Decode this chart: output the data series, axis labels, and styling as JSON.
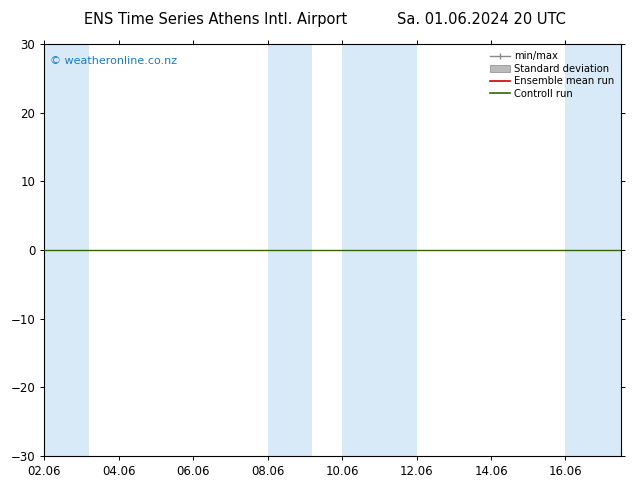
{
  "title_left": "ENS Time Series Athens Intl. Airport",
  "title_right": "Sa. 01.06.2024 20 UTC",
  "title_fontsize": 10.5,
  "watermark": "© weatheronline.co.nz",
  "watermark_color": "#1a7abf",
  "ylim": [
    -30,
    30
  ],
  "yticks": [
    -30,
    -20,
    -10,
    0,
    10,
    20,
    30
  ],
  "xlim_start": 0,
  "xlim_end": 15.5,
  "xtick_labels": [
    "02.06",
    "04.06",
    "06.06",
    "08.06",
    "10.06",
    "12.06",
    "14.06",
    "16.06"
  ],
  "xtick_positions": [
    0,
    2,
    4,
    6,
    8,
    10,
    12,
    14
  ],
  "shaded_bands": [
    [
      0.0,
      1.2
    ],
    [
      6.0,
      7.2
    ],
    [
      8.0,
      10.0
    ],
    [
      14.0,
      15.5
    ]
  ],
  "shade_color": "#d8eaf8",
  "zero_line_color": "#336600",
  "control_run_color": "#336600",
  "ensemble_mean_color": "#cc0000",
  "legend_minmax_color": "#888888",
  "legend_stddev_color": "#bbbbbb",
  "bg_color": "#ffffff",
  "tick_color": "#000000",
  "spine_color": "#000000",
  "label_fontsize": 8.5
}
